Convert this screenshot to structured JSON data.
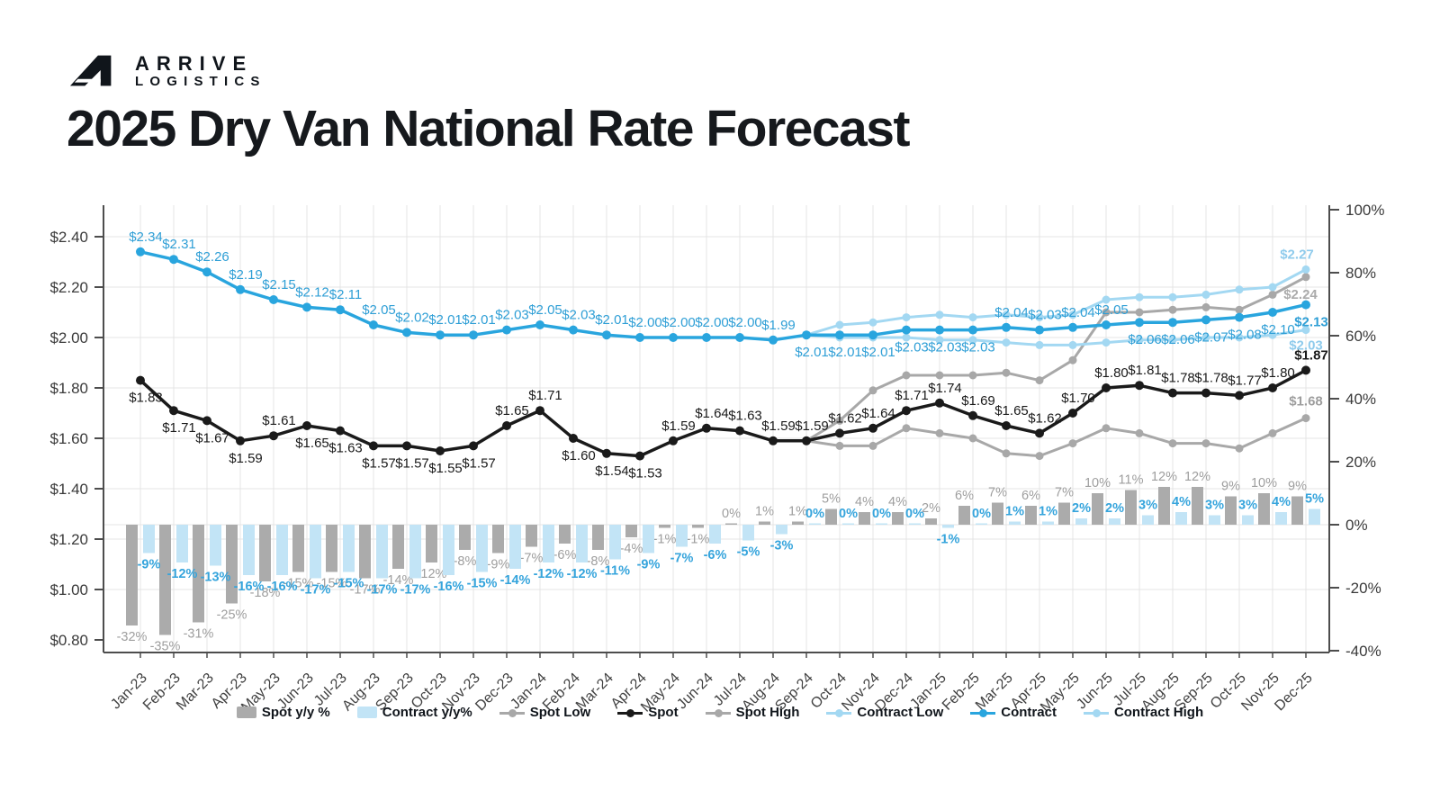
{
  "brand": {
    "icon": "arrive-logo-mark",
    "line1": "ARRIVE",
    "line2": "LOGISTICS"
  },
  "title": "2025 Dry Van National Rate Forecast",
  "chart_data": {
    "type": "combo-bar-line",
    "title": "2025 Dry Van National Rate Forecast",
    "grid": true,
    "legend_position": "bottom",
    "categories": [
      "Jan-23",
      "Feb-23",
      "Mar-23",
      "Apr-23",
      "May-23",
      "Jun-23",
      "Jul-23",
      "Aug-23",
      "Sep-23",
      "Oct-23",
      "Nov-23",
      "Dec-23",
      "Jan-24",
      "Feb-24",
      "Mar-24",
      "Apr-24",
      "May-24",
      "Jun-24",
      "Jul-24",
      "Aug-24",
      "Sep-24",
      "Oct-24",
      "Nov-24",
      "Dec-24",
      "Jan-25",
      "Feb-25",
      "Mar-25",
      "Apr-25",
      "May-25",
      "Jun-25",
      "Jul-25",
      "Aug-25",
      "Sep-25",
      "Oct-25",
      "Nov-25",
      "Dec-25"
    ],
    "left_axis": {
      "min": 0.8,
      "max": 2.4,
      "format": "usd",
      "tick_values": [
        0.8,
        1.0,
        1.2,
        1.4,
        1.6,
        1.8,
        2.0,
        2.2,
        2.4
      ],
      "tick_labels": [
        "$0.80",
        "$1.00",
        "$1.20",
        "$1.40",
        "$1.60",
        "$1.80",
        "$2.00",
        "$2.20",
        "$2.40"
      ]
    },
    "right_axis": {
      "min": -40,
      "max": 100,
      "format": "percent",
      "tick_values": [
        -40,
        -20,
        0,
        20,
        40,
        60,
        80,
        100
      ],
      "tick_labels": [
        "-40%",
        "-20%",
        "0%",
        "20%",
        "40%",
        "60%",
        "80%",
        "100%"
      ]
    },
    "series": [
      {
        "key": "spot_yoy",
        "name": "Spot y/y %",
        "type": "bar",
        "axis": "right",
        "color": "#ABABAB",
        "label_color": "#9E9E9E",
        "label_bold": false,
        "values": [
          -32,
          -35,
          -31,
          -25,
          -18,
          -15,
          -15,
          -17,
          -14,
          -12,
          -8,
          -9,
          -7,
          -6,
          -8,
          -4,
          -1,
          -1,
          0,
          1,
          1,
          5,
          4,
          4,
          2,
          6,
          7,
          6,
          7,
          10,
          11,
          12,
          12,
          9,
          10,
          9
        ]
      },
      {
        "key": "contract_yoy",
        "name": "Contract y/y%",
        "type": "bar",
        "axis": "right",
        "color": "#C2E4F6",
        "label_color": "#35A4DC",
        "label_bold": true,
        "values": [
          -9,
          -12,
          -13,
          -16,
          -16,
          -17,
          -15,
          -17,
          -17,
          -16,
          -15,
          -14,
          -12,
          -12,
          -11,
          -9,
          -7,
          -6,
          -5,
          -3,
          0,
          0,
          0,
          0,
          -1,
          0,
          1,
          1,
          2,
          2,
          3,
          4,
          3,
          3,
          4,
          5
        ]
      },
      {
        "key": "spot_low",
        "name": "Spot Low",
        "type": "line",
        "axis": "left",
        "color": "#A8A8A8",
        "label_color": "#9E9E9E",
        "labels": "last",
        "weight": "muted",
        "values": [
          null,
          null,
          null,
          null,
          null,
          null,
          null,
          null,
          null,
          null,
          null,
          null,
          null,
          null,
          null,
          null,
          null,
          null,
          null,
          null,
          1.59,
          1.57,
          1.57,
          1.64,
          1.62,
          1.6,
          1.54,
          1.53,
          1.58,
          1.64,
          1.62,
          1.58,
          1.58,
          1.56,
          1.62,
          1.68
        ]
      },
      {
        "key": "spot",
        "name": "Spot",
        "type": "line",
        "axis": "left",
        "color": "#1A1A1A",
        "label_color": "#1A1A1A",
        "labels": "all",
        "weight": "bold",
        "bold_last": true,
        "label_sides": "bbbbabbbbbbaabbbaaaaaaaaaaaaaaaaaaaa",
        "values": [
          1.83,
          1.71,
          1.67,
          1.59,
          1.61,
          1.65,
          1.63,
          1.57,
          1.57,
          1.55,
          1.57,
          1.65,
          1.71,
          1.6,
          1.54,
          1.53,
          1.59,
          1.64,
          1.63,
          1.59,
          1.59,
          1.62,
          1.64,
          1.71,
          1.74,
          1.69,
          1.65,
          1.62,
          1.7,
          1.8,
          1.81,
          1.78,
          1.78,
          1.77,
          1.8,
          1.87
        ]
      },
      {
        "key": "spot_high",
        "name": "Spot High",
        "type": "line",
        "axis": "left",
        "color": "#A8A8A8",
        "label_color": "#ABABAB",
        "labels": "last",
        "weight": "muted",
        "values": [
          null,
          null,
          null,
          null,
          null,
          null,
          null,
          null,
          null,
          null,
          null,
          null,
          null,
          null,
          null,
          null,
          null,
          null,
          null,
          null,
          1.59,
          1.67,
          1.79,
          1.85,
          1.85,
          1.85,
          1.86,
          1.83,
          1.91,
          2.1,
          2.1,
          2.11,
          2.12,
          2.11,
          2.17,
          2.24
        ]
      },
      {
        "key": "contract_low",
        "name": "Contract Low",
        "type": "line",
        "axis": "left",
        "color": "#A3D8F2",
        "label_color": "#8FCBEC",
        "labels": "last",
        "weight": "muted",
        "values": [
          null,
          null,
          null,
          null,
          null,
          null,
          null,
          null,
          null,
          null,
          null,
          null,
          null,
          null,
          null,
          null,
          null,
          null,
          null,
          null,
          2.01,
          2.0,
          2.0,
          2.0,
          1.99,
          1.99,
          1.98,
          1.97,
          1.97,
          1.98,
          1.99,
          1.99,
          2.0,
          2.0,
          2.01,
          2.03
        ]
      },
      {
        "key": "contract",
        "name": "Contract",
        "type": "line",
        "axis": "left",
        "color": "#29A5DE",
        "label_color": "#2F9FD6",
        "labels": "all",
        "weight": "bold",
        "bold_last": true,
        "label_sides": "aaaaaaaaaaaaaaaaaaaabbbbbbaaaabbbbbb",
        "values": [
          2.34,
          2.31,
          2.26,
          2.19,
          2.15,
          2.12,
          2.11,
          2.05,
          2.02,
          2.01,
          2.01,
          2.03,
          2.05,
          2.03,
          2.01,
          2.0,
          2.0,
          2.0,
          2.0,
          1.99,
          2.01,
          2.01,
          2.01,
          2.03,
          2.03,
          2.03,
          2.04,
          2.03,
          2.04,
          2.05,
          2.06,
          2.06,
          2.07,
          2.08,
          2.1,
          2.13
        ]
      },
      {
        "key": "contract_high",
        "name": "Contract High",
        "type": "line",
        "axis": "left",
        "color": "#A3D8F2",
        "label_color": "#8FCBEC",
        "labels": "last",
        "weight": "muted",
        "values": [
          null,
          null,
          null,
          null,
          null,
          null,
          null,
          null,
          null,
          null,
          null,
          null,
          null,
          null,
          null,
          null,
          null,
          null,
          null,
          null,
          2.01,
          2.05,
          2.06,
          2.08,
          2.09,
          2.08,
          2.09,
          2.08,
          2.09,
          2.15,
          2.16,
          2.16,
          2.17,
          2.19,
          2.2,
          2.27
        ]
      }
    ]
  },
  "legend": {
    "items": [
      {
        "label": "Spot y/y %",
        "swatch": "bar",
        "color": "#ABABAB"
      },
      {
        "label": "Contract y/y%",
        "swatch": "bar",
        "color": "#C2E4F6"
      },
      {
        "label": "Spot Low",
        "swatch": "line",
        "color": "#A8A8A8"
      },
      {
        "label": "Spot",
        "swatch": "line",
        "color": "#1A1A1A"
      },
      {
        "label": "Spot High",
        "swatch": "line",
        "color": "#A8A8A8"
      },
      {
        "label": "Contract Low",
        "swatch": "line",
        "color": "#A3D8F2"
      },
      {
        "label": "Contract",
        "swatch": "line",
        "color": "#29A5DE"
      },
      {
        "label": "Contract High",
        "swatch": "line",
        "color": "#A3D8F2"
      }
    ]
  }
}
